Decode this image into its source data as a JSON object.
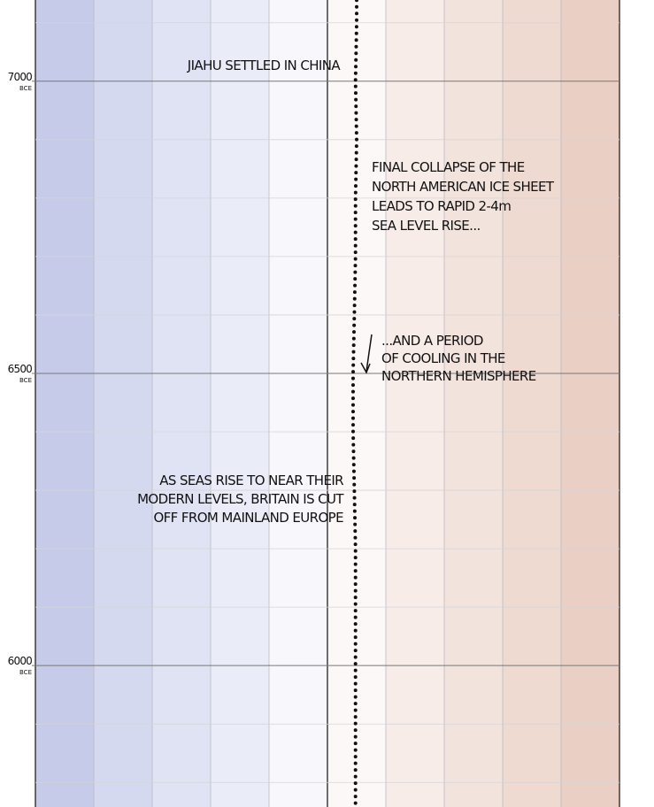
{
  "chart_data": {
    "type": "line",
    "orientation": "vertical",
    "y_unit": "BCE",
    "ylim": [
      7139,
      5758
    ],
    "yticks": [
      7000,
      6500,
      6000
    ],
    "y_minor_ticks": [
      7100,
      6900,
      6800,
      6700,
      6600,
      6400,
      6300,
      6200,
      6100,
      5900,
      5800
    ],
    "xlim": [
      -2.5,
      2.5
    ],
    "xticks": [
      -2.5,
      -2,
      -1.5,
      -1,
      -0.5,
      0,
      0.5,
      1,
      1.5,
      2,
      2.5
    ],
    "band_colors": [
      "#c6cbe9",
      "#d5d9f0",
      "#e0e3f4",
      "#eaecf8",
      "#f8f8fc",
      "#fcf8f7",
      "#f7ece8",
      "#f3e3dd",
      "#eedad1",
      "#eacfc4"
    ],
    "color": "#111111",
    "y": [
      7150,
      7100,
      7000,
      6900,
      6800,
      6700,
      6600,
      6500,
      6400,
      6300,
      6200,
      6100,
      6000,
      5900,
      5800,
      5750
    ],
    "values": [
      0.25,
      0.25,
      0.24,
      0.25,
      0.24,
      0.24,
      0.23,
      0.22,
      0.22,
      0.23,
      0.24,
      0.24,
      0.24,
      0.24,
      0.24,
      0.24
    ],
    "annotations": [
      [
        "JIAHU SETTLED IN CHINA"
      ],
      [
        "FINAL COLLAPSE OF THE",
        "NORTH AMERICAN ICE SHEET",
        "LEADS TO RAPID 2-4m",
        "SEA LEVEL RISE..."
      ],
      [
        "...AND A PERIOD",
        "OF COOLING IN THE",
        "NORTHERN HEMISPHERE"
      ],
      [
        "AS SEAS RISE TO NEAR THEIR",
        "MODERN LEVELS, BRITAIN IS CUT",
        "OFF FROM MAINLAND EUROPE"
      ]
    ]
  }
}
